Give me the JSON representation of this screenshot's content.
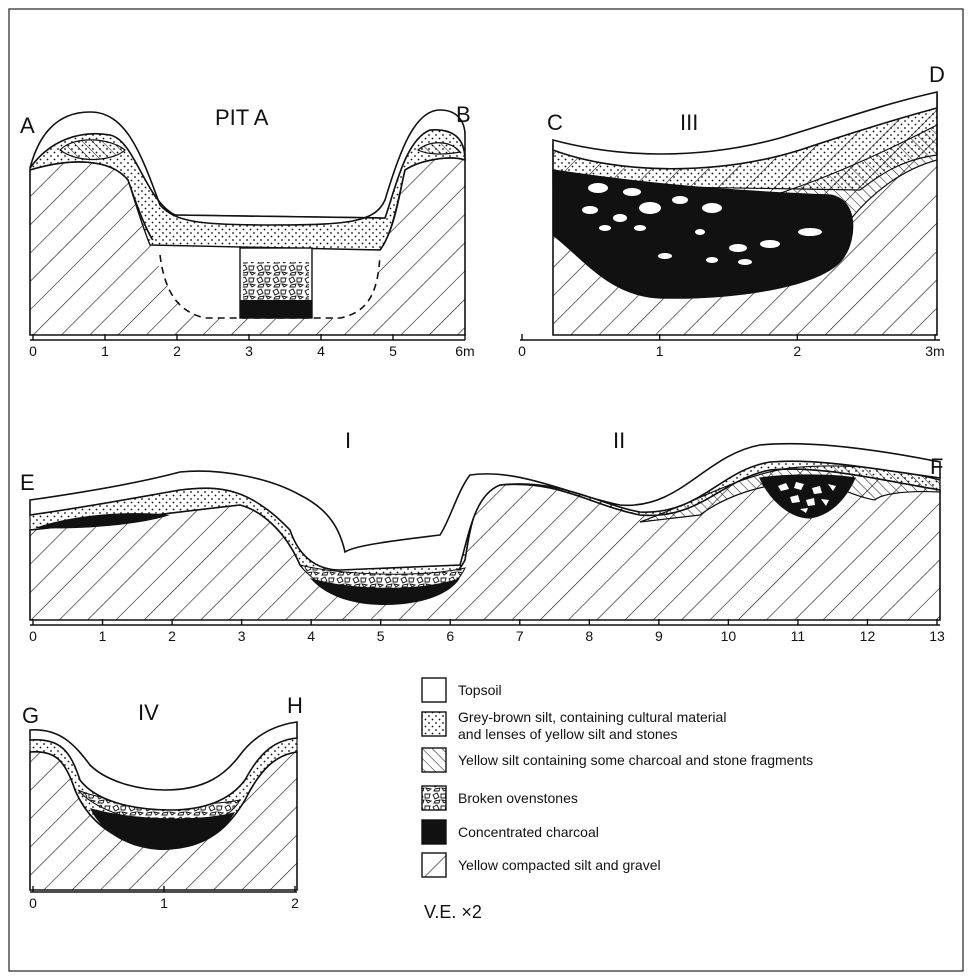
{
  "sections": {
    "pit_a": {
      "left": "A",
      "right": "B",
      "title": "PIT  A",
      "ticks": [
        "0",
        "1",
        "2",
        "3",
        "4",
        "5",
        "6m"
      ]
    },
    "iii": {
      "left": "C",
      "right": "D",
      "title": "III",
      "ticks": [
        "0",
        "1",
        "2",
        "3m"
      ]
    },
    "ef": {
      "left": "E",
      "right": "F",
      "title_1": "I",
      "title_2": "II",
      "ticks": [
        "0",
        "1",
        "2",
        "3",
        "4",
        "5",
        "6",
        "7",
        "8",
        "9",
        "10",
        "11",
        "12",
        "13"
      ]
    },
    "iv": {
      "left": "G",
      "right": "H",
      "title": "IV",
      "ticks": [
        "0",
        "1",
        "2"
      ]
    }
  },
  "legend": {
    "items": [
      {
        "key": "topsoil",
        "label": "Topsoil"
      },
      {
        "key": "silt",
        "label": "Grey-brown silt, containing cultural material",
        "label_2": "and lenses of yellow silt and stones"
      },
      {
        "key": "yellow",
        "label": "Yellow silt containing some charcoal and stone fragments"
      },
      {
        "key": "stones",
        "label": "Broken ovenstones"
      },
      {
        "key": "charcoal",
        "label": "Concentrated charcoal"
      },
      {
        "key": "gravel",
        "label": "Yellow compacted silt and gravel"
      }
    ]
  },
  "vertical_exaggeration": "V.E. ×2"
}
